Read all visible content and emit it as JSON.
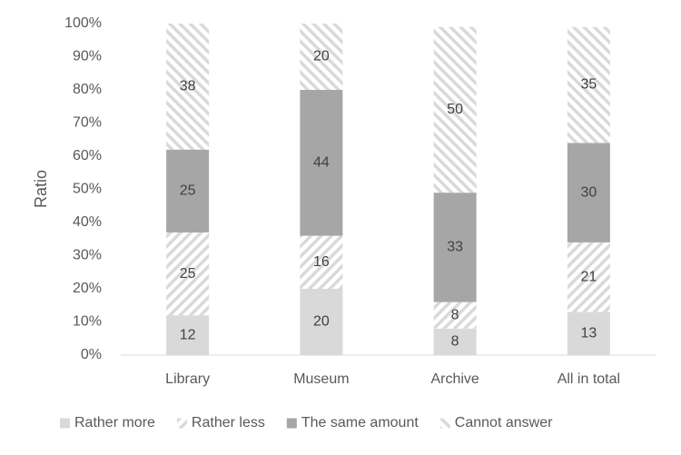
{
  "chart_data": {
    "type": "stacked-bar-100",
    "y_label": "Ratio",
    "categories": [
      "Library",
      "Museum",
      "Archive",
      "All in total"
    ],
    "series": [
      {
        "name": "Rather more",
        "color": "#d9d9d9",
        "pattern": "solid",
        "values": [
          12,
          20,
          8,
          13
        ]
      },
      {
        "name": "Rather less",
        "color": "#d9d9d9",
        "pattern": "forward-hatch",
        "values": [
          25,
          16,
          8,
          21
        ]
      },
      {
        "name": "The same amount",
        "color": "#a6a6a6",
        "pattern": "solid",
        "values": [
          25,
          44,
          33,
          30
        ]
      },
      {
        "name": "Cannot answer",
        "color": "#d9d9d9",
        "pattern": "backward-hatch",
        "values": [
          38,
          20,
          50,
          35
        ]
      }
    ],
    "ylim": [
      0,
      100
    ],
    "yticks": [
      {
        "value": 0,
        "label": "0%"
      },
      {
        "value": 10,
        "label": "10%"
      },
      {
        "value": 20,
        "label": "20%"
      },
      {
        "value": 30,
        "label": "30%"
      },
      {
        "value": 40,
        "label": "40%"
      },
      {
        "value": 50,
        "label": "50%"
      },
      {
        "value": 60,
        "label": "60%"
      },
      {
        "value": 70,
        "label": "70%"
      },
      {
        "value": 80,
        "label": "80%"
      },
      {
        "value": 90,
        "label": "90%"
      },
      {
        "value": 100,
        "label": "100%"
      }
    ],
    "grid": false,
    "legend": "bottom"
  }
}
